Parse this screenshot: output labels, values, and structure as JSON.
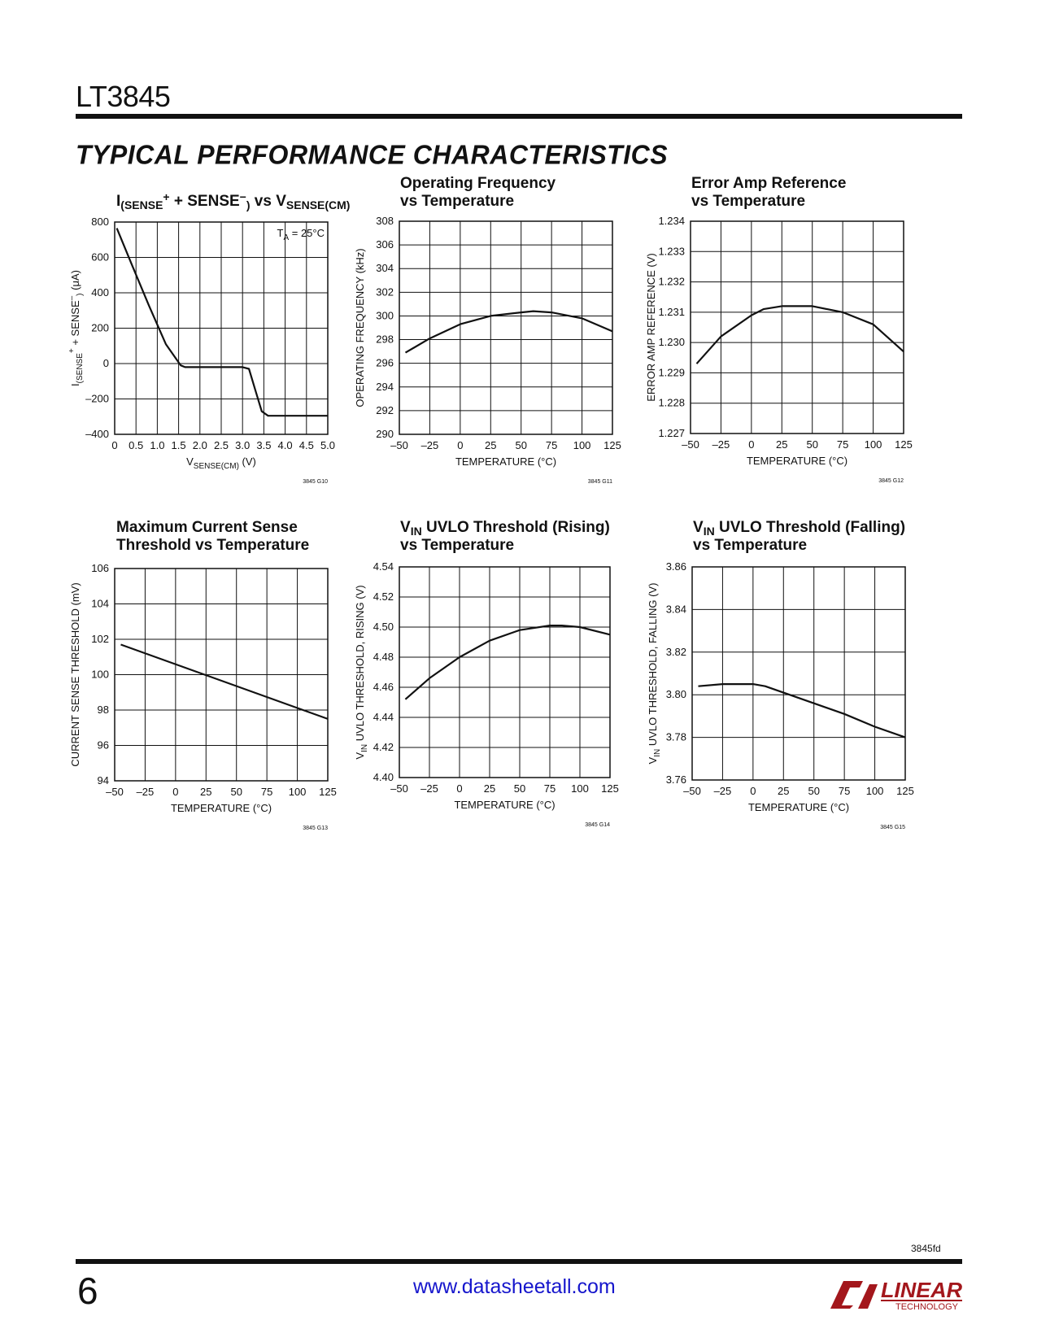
{
  "header": {
    "part_number": "LT3845",
    "section_title": "TYPICAL PERFORMANCE CHARACTERISTICS"
  },
  "footer": {
    "doc_id": "3845fd",
    "page_number": "6",
    "url": "www.datasheetall.com",
    "logo_text": "LINEAR",
    "logo_subtext": "TECHNOLOGY"
  },
  "chart_data": [
    {
      "id": "G10",
      "type": "line",
      "title_lines": [
        [
          "I",
          "(SENSE",
          "+",
          " + SENSE",
          "−",
          ")",
          " vs V",
          "SENSE(CM)"
        ]
      ],
      "figure_id": "3845 G10",
      "xlabel": [
        "V",
        "SENSE(CM)",
        " (V)"
      ],
      "ylabel": [
        "I",
        "(SENSE",
        "+",
        " + SENSE",
        "–",
        ")",
        " (μA)"
      ],
      "xlim": [
        0,
        5
      ],
      "ylim": [
        -400,
        800
      ],
      "xticks": [
        0,
        0.5,
        1.0,
        1.5,
        2.0,
        2.5,
        3.0,
        3.5,
        4.0,
        4.5,
        5.0
      ],
      "xtick_labels": [
        "0",
        "0.5",
        "1.0",
        "1.5",
        "2.0",
        "2.5",
        "3.0",
        "3.5",
        "4.0",
        "4.5",
        "5.0"
      ],
      "yticks": [
        -400,
        -200,
        0,
        200,
        400,
        600,
        800
      ],
      "ytick_labels": [
        "–400",
        "–200",
        "0",
        "200",
        "400",
        "600",
        "800"
      ],
      "xgrid": [
        0,
        0.5,
        1.0,
        1.5,
        2.0,
        2.5,
        3.0,
        3.5,
        4.0,
        4.5,
        5.0
      ],
      "annotation": [
        "T",
        "A",
        " = 25°C"
      ],
      "series": [
        {
          "x": [
            0.05,
            0.4,
            0.8,
            1.2,
            1.55,
            1.65,
            2.0,
            2.5,
            3.0,
            3.15,
            3.3,
            3.45,
            3.6,
            4.0,
            4.5,
            5.0
          ],
          "y": [
            765,
            560,
            330,
            110,
            -10,
            -20,
            -20,
            -20,
            -20,
            -30,
            -150,
            -270,
            -295,
            -295,
            -295,
            -295
          ]
        }
      ]
    },
    {
      "id": "G11",
      "type": "line",
      "title_lines": [
        [
          "Operating Frequency"
        ],
        [
          "vs Temperature"
        ]
      ],
      "figure_id": "3845 G11",
      "xlabel": [
        "TEMPERATURE (°C)"
      ],
      "ylabel": [
        "OPERATING FREQUENCY (kHz)"
      ],
      "xlim": [
        -50,
        125
      ],
      "ylim": [
        290,
        308
      ],
      "xticks": [
        -50,
        -25,
        0,
        25,
        50,
        75,
        100,
        125
      ],
      "xtick_labels": [
        "–50",
        "–25",
        "0",
        "25",
        "50",
        "75",
        "100",
        "125"
      ],
      "yticks": [
        290,
        292,
        294,
        296,
        298,
        300,
        302,
        304,
        306,
        308
      ],
      "ytick_labels": [
        "290",
        "292",
        "294",
        "296",
        "298",
        "300",
        "302",
        "304",
        "306",
        "308"
      ],
      "xgrid": [
        -50,
        -25,
        0,
        25,
        50,
        75,
        100,
        125
      ],
      "series": [
        {
          "x": [
            -45,
            -25,
            0,
            25,
            50,
            60,
            75,
            100,
            125
          ],
          "y": [
            296.9,
            298.1,
            299.3,
            300.0,
            300.3,
            300.4,
            300.3,
            299.8,
            298.7
          ]
        }
      ]
    },
    {
      "id": "G12",
      "type": "line",
      "title_lines": [
        [
          "Error Amp Reference"
        ],
        [
          "vs Temperature"
        ]
      ],
      "figure_id": "3845 G12",
      "xlabel": [
        "TEMPERATURE (°C)"
      ],
      "ylabel": [
        "ERROR AMP REFERENCE (V)"
      ],
      "xlim": [
        -50,
        125
      ],
      "ylim": [
        1.227,
        1.234
      ],
      "xticks": [
        -50,
        -25,
        0,
        25,
        50,
        75,
        100,
        125
      ],
      "xtick_labels": [
        "–50",
        "–25",
        "0",
        "25",
        "50",
        "75",
        "100",
        "125"
      ],
      "yticks": [
        1.227,
        1.228,
        1.229,
        1.23,
        1.231,
        1.232,
        1.233,
        1.234
      ],
      "ytick_labels": [
        "1.227",
        "1.228",
        "1.229",
        "1.230",
        "1.231",
        "1.232",
        "1.233",
        "1.234"
      ],
      "xgrid": [
        -50,
        -25,
        0,
        25,
        50,
        75,
        100,
        125
      ],
      "series": [
        {
          "x": [
            -45,
            -25,
            0,
            10,
            25,
            40,
            50,
            75,
            100,
            125
          ],
          "y": [
            1.2293,
            1.2302,
            1.2309,
            1.2311,
            1.2312,
            1.2312,
            1.2312,
            1.231,
            1.2306,
            1.2297
          ]
        }
      ]
    },
    {
      "id": "G13",
      "type": "line",
      "title_lines": [
        [
          "Maximum Current Sense"
        ],
        [
          "Threshold vs Temperature"
        ]
      ],
      "figure_id": "3845 G13",
      "xlabel": [
        "TEMPERATURE (°C)"
      ],
      "ylabel": [
        "CURRENT SENSE THRESHOLD (mV)"
      ],
      "xlim": [
        -50,
        125
      ],
      "ylim": [
        94,
        106
      ],
      "xticks": [
        -50,
        -25,
        0,
        25,
        50,
        75,
        100,
        125
      ],
      "xtick_labels": [
        "–50",
        "–25",
        "0",
        "25",
        "50",
        "75",
        "100",
        "125"
      ],
      "yticks": [
        94,
        96,
        98,
        100,
        102,
        104,
        106
      ],
      "ytick_labels": [
        "94",
        "96",
        "98",
        "100",
        "102",
        "104",
        "106"
      ],
      "xgrid": [
        -50,
        -25,
        0,
        25,
        50,
        75,
        100,
        125
      ],
      "series": [
        {
          "x": [
            -45,
            125
          ],
          "y": [
            101.7,
            97.5
          ]
        }
      ]
    },
    {
      "id": "G14",
      "type": "line",
      "title_lines": [
        [
          "V",
          "IN",
          " UVLO Threshold (Rising)"
        ],
        [
          "vs Temperature"
        ]
      ],
      "figure_id": "3845 G14",
      "xlabel": [
        "TEMPERATURE (°C)"
      ],
      "ylabel": [
        "V",
        "IN",
        " UVLO THRESHOLD, RISING (V)"
      ],
      "xlim": [
        -50,
        125
      ],
      "ylim": [
        4.4,
        4.54
      ],
      "xticks": [
        -50,
        -25,
        0,
        25,
        50,
        75,
        100,
        125
      ],
      "xtick_labels": [
        "–50",
        "–25",
        "0",
        "25",
        "50",
        "75",
        "100",
        "125"
      ],
      "yticks": [
        4.4,
        4.42,
        4.44,
        4.46,
        4.48,
        4.5,
        4.52,
        4.54
      ],
      "ytick_labels": [
        "4.40",
        "4.42",
        "4.44",
        "4.46",
        "4.48",
        "4.50",
        "4.52",
        "4.54"
      ],
      "xgrid": [
        -50,
        -25,
        0,
        25,
        50,
        75,
        100,
        125
      ],
      "series": [
        {
          "x": [
            -45,
            -25,
            0,
            25,
            50,
            75,
            85,
            100,
            125
          ],
          "y": [
            4.452,
            4.466,
            4.48,
            4.491,
            4.498,
            4.501,
            4.501,
            4.5,
            4.495
          ]
        }
      ]
    },
    {
      "id": "G15",
      "type": "line",
      "title_lines": [
        [
          "V",
          "IN",
          " UVLO Threshold (Falling)"
        ],
        [
          "vs Temperature"
        ]
      ],
      "figure_id": "3845 G15",
      "xlabel": [
        "TEMPERATURE (°C)"
      ],
      "ylabel": [
        "V",
        "IN",
        " UVLO THRESHOLD, FALLING (V)"
      ],
      "xlim": [
        -50,
        125
      ],
      "ylim": [
        3.76,
        3.86
      ],
      "xticks": [
        -50,
        -25,
        0,
        25,
        50,
        75,
        100,
        125
      ],
      "xtick_labels": [
        "–50",
        "–25",
        "0",
        "25",
        "50",
        "75",
        "100",
        "125"
      ],
      "yticks": [
        3.76,
        3.78,
        3.8,
        3.82,
        3.84,
        3.86
      ],
      "ytick_labels": [
        "3.76",
        "3.78",
        "3.80",
        "3.82",
        "3.84",
        "3.86"
      ],
      "xgrid": [
        -50,
        -25,
        0,
        25,
        50,
        75,
        100,
        125
      ],
      "series": [
        {
          "x": [
            -45,
            -25,
            -10,
            0,
            10,
            25,
            50,
            75,
            100,
            125
          ],
          "y": [
            3.804,
            3.805,
            3.805,
            3.805,
            3.804,
            3.801,
            3.796,
            3.791,
            3.785,
            3.78
          ]
        }
      ]
    }
  ]
}
